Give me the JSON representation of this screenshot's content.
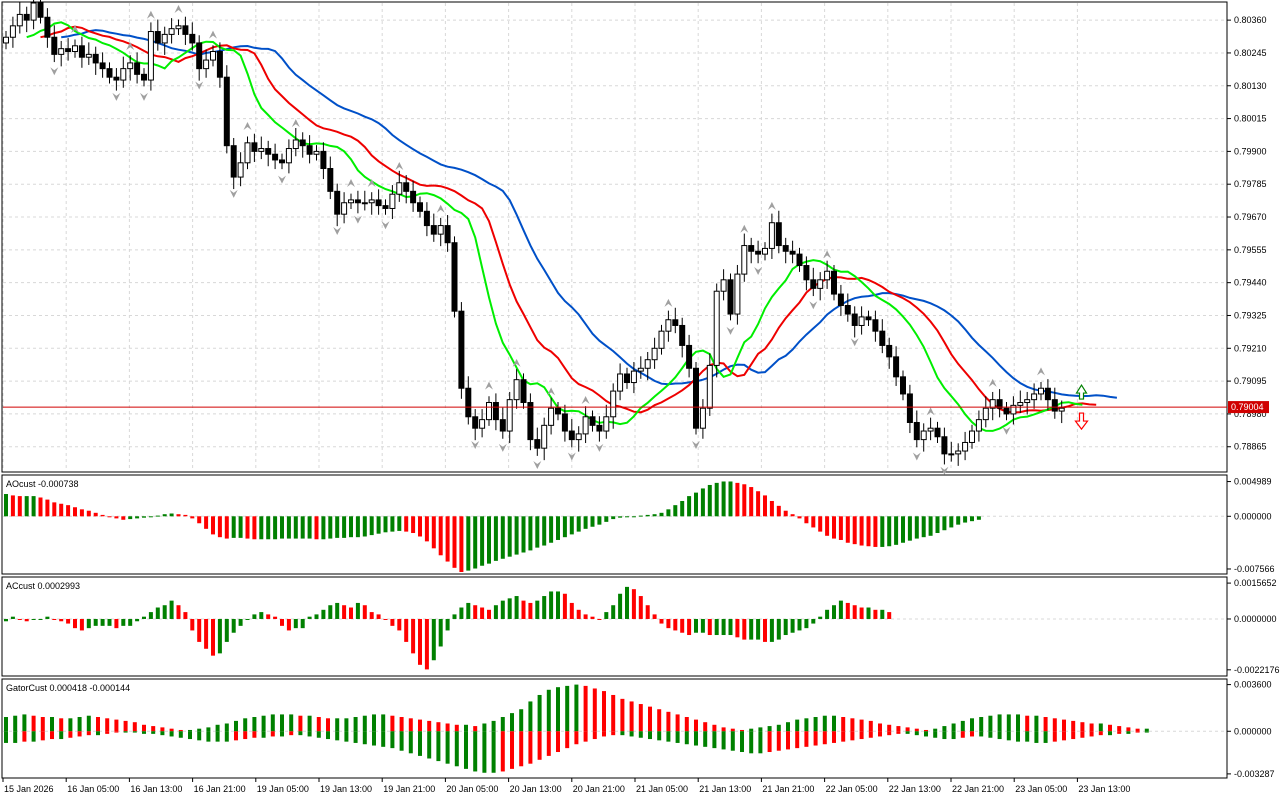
{
  "colors": {
    "bull": "#008000",
    "bear": "#ff0000",
    "jaw": "#0050c8",
    "teeth": "#ee0000",
    "lips": "#00ee00",
    "grid": "#d8d8d8",
    "frame": "#000000",
    "fractal": "#a0a0a0",
    "current_line": "#d00000",
    "current_bg": "#d00000"
  },
  "time_labels": [
    "15 Jan 2026",
    "16 Jan 05:00",
    "16 Jan 13:00",
    "16 Jan 21:00",
    "19 Jan 05:00",
    "19 Jan 13:00",
    "19 Jan 21:00",
    "20 Jan 05:00",
    "20 Jan 13:00",
    "20 Jan 21:00",
    "21 Jan 05:00",
    "21 Jan 13:00",
    "21 Jan 21:00",
    "22 Jan 05:00",
    "22 Jan 13:00",
    "22 Jan 21:00",
    "23 Jan 05:00",
    "23 Jan 13:00"
  ],
  "current_price_label": "0.79004",
  "signals": {
    "buy_arrow": "up-arrow-icon",
    "sell_arrow": "down-arrow-icon",
    "fractal": "fractal-arrow-icon"
  },
  "panels": {
    "ao": {
      "title": "AOcust -0.000738"
    },
    "ac": {
      "title": "ACcust 0.0002993"
    },
    "gator": {
      "title": "GatorCust 0.000418 -0.000144"
    }
  },
  "chart_data": [
    {
      "type": "candlestick",
      "symbol_panel": "price",
      "y_ticks": [
        "0.80360",
        "0.80245",
        "0.80130",
        "0.80015",
        "0.79900",
        "0.79785",
        "0.79670",
        "0.79555",
        "0.79440",
        "0.79325",
        "0.79210",
        "0.79095",
        "0.78980",
        "0.78865"
      ],
      "ylim": [
        0.7878,
        0.8042
      ],
      "current_price": 0.79004,
      "closes": [
        0.803,
        0.8034,
        0.8038,
        0.8036,
        0.8042,
        0.8037,
        0.803,
        0.8024,
        0.8026,
        0.8025,
        0.8027,
        0.8023,
        0.8024,
        0.8021,
        0.8019,
        0.8016,
        0.8015,
        0.8019,
        0.8021,
        0.8017,
        0.8015,
        0.8032,
        0.8028,
        0.8031,
        0.8033,
        0.8034,
        0.8031,
        0.8028,
        0.8019,
        0.8022,
        0.8025,
        0.8016,
        0.7992,
        0.7981,
        0.7986,
        0.7993,
        0.799,
        0.7991,
        0.7989,
        0.7987,
        0.7986,
        0.7991,
        0.7994,
        0.7992,
        0.7989,
        0.799,
        0.7984,
        0.7976,
        0.7968,
        0.7972,
        0.7973,
        0.7972,
        0.7972,
        0.7973,
        0.7971,
        0.797,
        0.7975,
        0.7979,
        0.7976,
        0.7972,
        0.7969,
        0.7964,
        0.7961,
        0.7964,
        0.7958,
        0.7934,
        0.7907,
        0.7897,
        0.7893,
        0.7896,
        0.7902,
        0.7896,
        0.7892,
        0.7903,
        0.791,
        0.7902,
        0.7889,
        0.7886,
        0.7894,
        0.79,
        0.7898,
        0.7892,
        0.7889,
        0.7891,
        0.7897,
        0.7894,
        0.7892,
        0.7897,
        0.7906,
        0.7912,
        0.7909,
        0.7913,
        0.7914,
        0.7917,
        0.7921,
        0.7927,
        0.7931,
        0.7929,
        0.7922,
        0.7914,
        0.7893,
        0.79,
        0.7915,
        0.7941,
        0.7945,
        0.7933,
        0.7947,
        0.7957,
        0.7955,
        0.7954,
        0.7956,
        0.7965,
        0.7957,
        0.7955,
        0.7954,
        0.795,
        0.7945,
        0.7942,
        0.7945,
        0.7948,
        0.794,
        0.7936,
        0.7933,
        0.7929,
        0.7932,
        0.7931,
        0.7927,
        0.7922,
        0.7918,
        0.7911,
        0.7905,
        0.7895,
        0.7889,
        0.7892,
        0.7893,
        0.789,
        0.7884,
        0.7884,
        0.7885,
        0.7888,
        0.7892,
        0.7896,
        0.79,
        0.7903,
        0.79,
        0.7898,
        0.7901,
        0.7902,
        0.7903,
        0.7905,
        0.7907,
        0.7903,
        0.7899,
        0.79
      ]
    },
    {
      "type": "bar",
      "symbol_panel": "ao",
      "y_ticks": [
        "0.004989",
        "0.000000",
        "-0.007566"
      ],
      "ylim": [
        -0.008,
        0.0055
      ],
      "values": [
        0.0032,
        0.003,
        0.0029,
        0.0029,
        0.0029,
        0.0027,
        0.0024,
        0.002,
        0.0018,
        0.0016,
        0.0013,
        0.001,
        0.0008,
        0.0005,
        0.0002,
        0.0,
        -0.0003,
        -0.0005,
        -0.0004,
        -0.0003,
        -0.0002,
        -0.0001,
        0.0001,
        0.0003,
        0.0004,
        0.0003,
        0.0002,
        -0.0003,
        -0.001,
        -0.0018,
        -0.0026,
        -0.003,
        -0.0032,
        -0.0031,
        -0.0031,
        -0.0032,
        -0.0033,
        -0.0033,
        -0.0033,
        -0.0033,
        -0.0032,
        -0.0032,
        -0.0032,
        -0.0032,
        -0.0032,
        -0.0033,
        -0.0033,
        -0.0032,
        -0.0031,
        -0.0031,
        -0.003,
        -0.003,
        -0.0029,
        -0.0027,
        -0.0025,
        -0.0023,
        -0.0022,
        -0.0021,
        -0.0022,
        -0.0024,
        -0.0029,
        -0.0036,
        -0.0046,
        -0.0056,
        -0.0065,
        -0.0074,
        -0.008,
        -0.0078,
        -0.0075,
        -0.0071,
        -0.0068,
        -0.0064,
        -0.0061,
        -0.0058,
        -0.0055,
        -0.0052,
        -0.0049,
        -0.0045,
        -0.0042,
        -0.0038,
        -0.0034,
        -0.003,
        -0.0026,
        -0.0022,
        -0.0018,
        -0.0015,
        -0.0012,
        -0.0008,
        -0.0004,
        -0.0002,
        -0.0001,
        0.0,
        0.0001,
        0.0002,
        0.0003,
        0.0005,
        0.001,
        0.0016,
        0.0022,
        0.0029,
        0.0034,
        0.004,
        0.0045,
        0.0048,
        0.005,
        0.005,
        0.0048,
        0.0046,
        0.0042,
        0.0036,
        0.003,
        0.0022,
        0.0015,
        0.0008,
        0.0003,
        -0.0003,
        -0.001,
        -0.0016,
        -0.0022,
        -0.0028,
        -0.0032,
        -0.0034,
        -0.0038,
        -0.004,
        -0.0042,
        -0.0043,
        -0.0044,
        -0.0044,
        -0.0043,
        -0.0041,
        -0.0038,
        -0.0035,
        -0.0032,
        -0.003,
        -0.0028,
        -0.0024,
        -0.002,
        -0.0016,
        -0.0012,
        -0.0009,
        -0.0007,
        -0.0005
      ]
    },
    {
      "type": "bar",
      "symbol_panel": "ac",
      "y_ticks": [
        "0.0015652",
        "0.0000000",
        "-0.0022176"
      ],
      "ylim": [
        -0.0024,
        0.0017
      ],
      "values": [
        -0.0001,
        0.0001,
        0.0,
        -0.0001,
        0.0,
        0.0,
        0.0001,
        0.0,
        -0.0001,
        -0.0002,
        -0.0004,
        -0.0005,
        -0.0004,
        -0.0003,
        -0.0003,
        -0.0003,
        -0.0004,
        -0.0003,
        -0.0003,
        -0.0001,
        0.0001,
        0.0003,
        0.0005,
        0.0006,
        0.0008,
        0.0006,
        0.0003,
        -0.0005,
        -0.001,
        -0.0013,
        -0.0016,
        -0.0015,
        -0.001,
        -0.0006,
        -0.0003,
        0.0,
        0.0002,
        0.0003,
        0.0002,
        0.0001,
        -0.0003,
        -0.0005,
        -0.0004,
        -0.0004,
        0.0001,
        0.0002,
        0.0004,
        0.0006,
        0.0007,
        0.0006,
        0.0005,
        0.0007,
        0.0006,
        0.0003,
        0.0002,
        0.0,
        -0.0003,
        -0.0005,
        -0.001,
        -0.0015,
        -0.002,
        -0.0022,
        -0.0018,
        -0.0012,
        -0.0005,
        0.0002,
        0.0005,
        0.0007,
        0.0006,
        0.0005,
        0.0004,
        0.0006,
        0.0008,
        0.0009,
        0.001,
        0.0008,
        0.0007,
        0.0008,
        0.001,
        0.0012,
        0.0012,
        0.0011,
        0.0007,
        0.0004,
        0.0002,
        0.0001,
        0.0,
        0.0003,
        0.0006,
        0.0011,
        0.0014,
        0.0013,
        0.001,
        0.0006,
        0.0002,
        -0.0002,
        -0.0004,
        -0.0005,
        -0.0006,
        -0.0007,
        -0.0006,
        -0.0006,
        -0.0007,
        -0.0007,
        -0.0007,
        -0.0007,
        -0.0008,
        -0.0009,
        -0.0009,
        -0.0009,
        -0.001,
        -0.001,
        -0.0009,
        -0.0007,
        -0.0006,
        -0.0005,
        -0.0004,
        -0.0002,
        0.0001,
        0.0004,
        0.0006,
        0.0008,
        0.0007,
        0.0006,
        0.0005,
        0.0005,
        0.0004,
        0.0004,
        0.0003
      ]
    },
    {
      "type": "bar",
      "symbol_panel": "gator",
      "y_ticks": [
        "0.003600",
        "0.000000",
        "-0.003287"
      ],
      "ylim": [
        -0.00345,
        0.0038
      ],
      "upper": [
        0.0011,
        0.0012,
        0.0013,
        0.0012,
        0.0011,
        0.0011,
        0.001,
        0.001,
        0.0011,
        0.0012,
        0.0011,
        0.001,
        0.0009,
        0.0008,
        0.0007,
        0.0005,
        0.0004,
        0.0003,
        0.0002,
        0.0001,
        0.0001,
        0.0002,
        0.0003,
        0.0005,
        0.0006,
        0.0008,
        0.001,
        0.0011,
        0.0012,
        0.0013,
        0.0013,
        0.0013,
        0.0012,
        0.0012,
        0.0011,
        0.001,
        0.001,
        0.001,
        0.0011,
        0.0012,
        0.0013,
        0.0013,
        0.0012,
        0.0011,
        0.001,
        0.0009,
        0.0008,
        0.0007,
        0.0006,
        0.0005,
        0.0005,
        0.0004,
        0.0006,
        0.0008,
        0.0011,
        0.0014,
        0.0017,
        0.0023,
        0.0028,
        0.0032,
        0.0034,
        0.0035,
        0.0036,
        0.0035,
        0.0033,
        0.0031,
        0.0028,
        0.0025,
        0.0023,
        0.0021,
        0.0019,
        0.0017,
        0.0015,
        0.0013,
        0.0011,
        0.0009,
        0.0007,
        0.0005,
        0.0003,
        0.0002,
        0.0001,
        0.0002,
        0.0003,
        0.0004,
        0.0005,
        0.0007,
        0.0009,
        0.001,
        0.0011,
        0.0012,
        0.0012,
        0.0011,
        0.001,
        0.0009,
        0.0008,
        0.0006,
        0.0005,
        0.0004,
        0.0003,
        0.0002,
        0.0001,
        0.0002,
        0.0004,
        0.0006,
        0.0008,
        0.001,
        0.0011,
        0.0012,
        0.0013,
        0.0013,
        0.0013,
        0.0012,
        0.0012,
        0.0011,
        0.001,
        0.0009,
        0.0008,
        0.0007,
        0.0006,
        0.0006,
        0.0005,
        0.0004,
        0.0003,
        0.0002,
        0.0002
      ],
      "lower": [
        -0.0009,
        -0.0009,
        -0.0008,
        -0.0008,
        -0.0007,
        -0.0006,
        -0.0006,
        -0.0005,
        -0.0004,
        -0.0003,
        -0.0003,
        -0.0002,
        -0.0001,
        -0.0001,
        -0.0001,
        -0.0002,
        -0.0002,
        -0.0003,
        -0.0004,
        -0.0005,
        -0.0006,
        -0.0007,
        -0.0008,
        -0.0008,
        -0.0008,
        -0.0007,
        -0.0006,
        -0.0005,
        -0.0005,
        -0.0004,
        -0.0004,
        -0.0003,
        -0.0003,
        -0.0004,
        -0.0005,
        -0.0006,
        -0.0007,
        -0.0008,
        -0.0009,
        -0.001,
        -0.0011,
        -0.0012,
        -0.0013,
        -0.0015,
        -0.0017,
        -0.0019,
        -0.0021,
        -0.0023,
        -0.0025,
        -0.0027,
        -0.0029,
        -0.0031,
        -0.0032,
        -0.0032,
        -0.0031,
        -0.0029,
        -0.0027,
        -0.0025,
        -0.0022,
        -0.0019,
        -0.0016,
        -0.0013,
        -0.001,
        -0.0008,
        -0.0006,
        -0.0004,
        -0.0003,
        -0.0003,
        -0.0004,
        -0.0005,
        -0.0006,
        -0.0007,
        -0.0008,
        -0.0009,
        -0.001,
        -0.0011,
        -0.0012,
        -0.0013,
        -0.0014,
        -0.0015,
        -0.0016,
        -0.0017,
        -0.0017,
        -0.0016,
        -0.0015,
        -0.0014,
        -0.0013,
        -0.0012,
        -0.0011,
        -0.001,
        -0.0009,
        -0.0008,
        -0.0007,
        -0.0006,
        -0.0005,
        -0.0004,
        -0.0003,
        -0.0002,
        -0.0002,
        -0.0003,
        -0.0004,
        -0.0005,
        -0.0006,
        -0.0006,
        -0.0005,
        -0.0004,
        -0.0004,
        -0.0005,
        -0.0006,
        -0.0007,
        -0.0008,
        -0.0008,
        -0.0009,
        -0.0009,
        -0.0008,
        -0.0007,
        -0.0006,
        -0.0005,
        -0.0004,
        -0.0003,
        -0.0003,
        -0.0002,
        -0.0002,
        -0.0001,
        -0.0001
      ]
    }
  ]
}
